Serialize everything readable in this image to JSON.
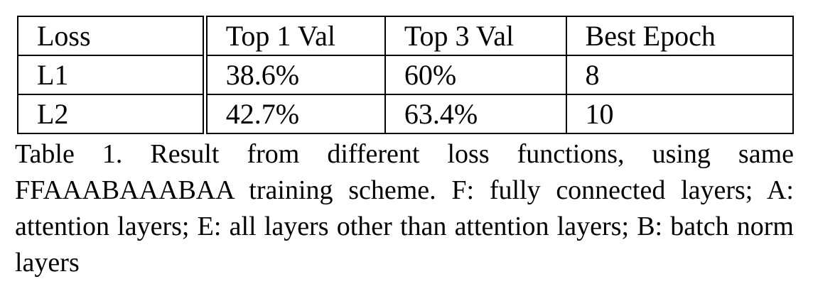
{
  "table": {
    "header": [
      "Loss",
      "Top 1 Val",
      "Top 3 Val",
      "Best Epoch"
    ],
    "rows": [
      [
        "L1",
        "38.6%",
        "60%",
        "8"
      ],
      [
        "L2",
        "42.7%",
        "63.4%",
        "10"
      ]
    ]
  },
  "caption": "Table 1. Result from different loss functions, using same FFAAABAAABAA training scheme. F: fully connected layers; A: attention layers; E: all layers other than attention layers; B: batch norm layers"
}
